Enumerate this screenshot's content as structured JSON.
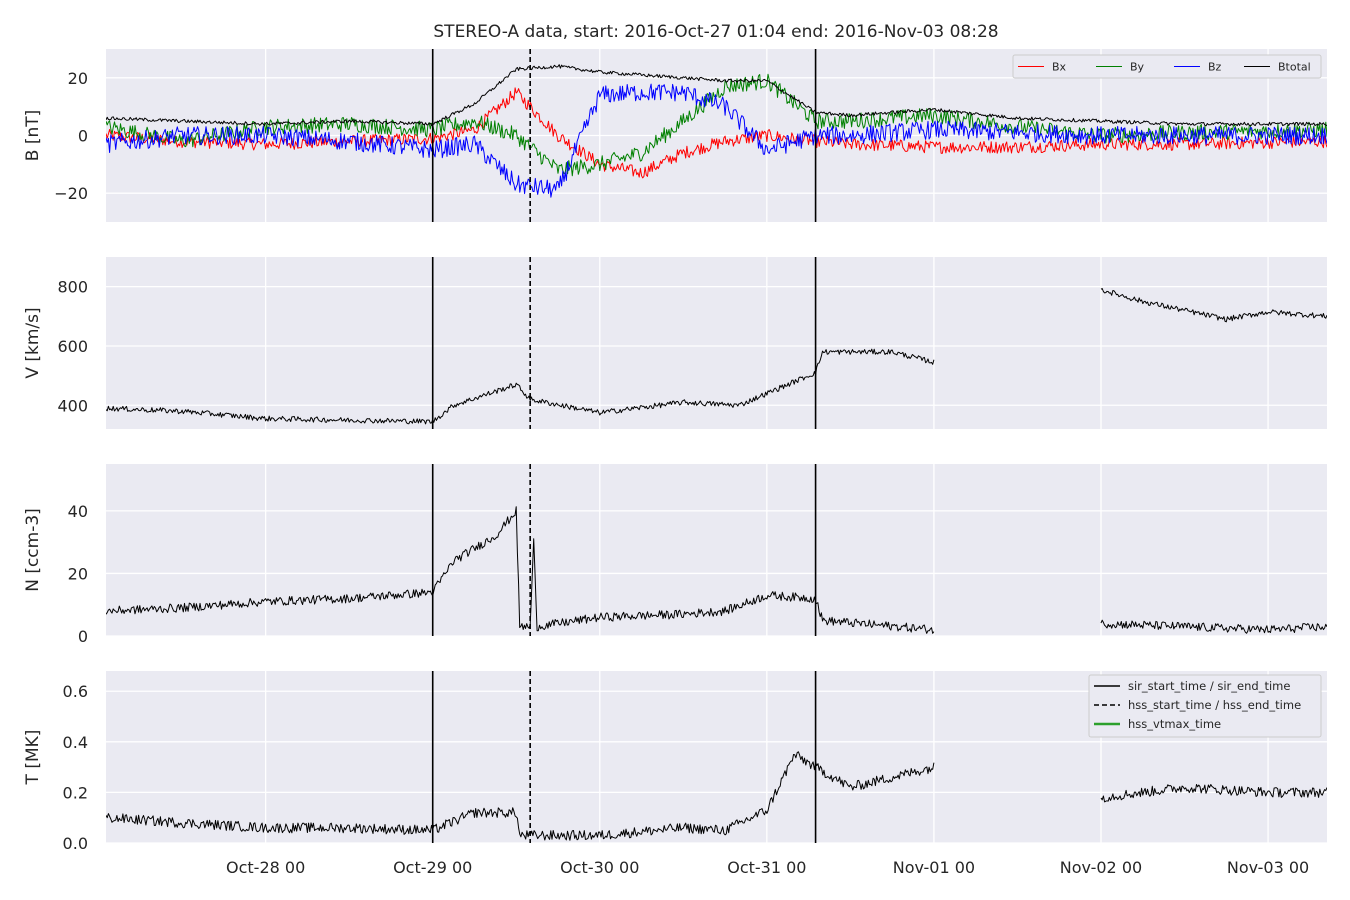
{
  "figure": {
    "title": "STEREO-A data, start: 2016-Oct-27 01:04  end: 2016-Nov-03 08:28"
  },
  "chart_data": {
    "type": "line",
    "x_range": [
      "2016-10-27 01:04",
      "2016-11-03 08:28"
    ],
    "x_ticks": [
      {
        "t": "2016-10-28 00:00",
        "label": "Oct-28 00"
      },
      {
        "t": "2016-10-29 00:00",
        "label": "Oct-29 00"
      },
      {
        "t": "2016-10-30 00:00",
        "label": "Oct-30 00"
      },
      {
        "t": "2016-10-31 00:00",
        "label": "Oct-31 00"
      },
      {
        "t": "2016-11-01 00:00",
        "label": "Nov-01 00"
      },
      {
        "t": "2016-11-02 00:00",
        "label": "Nov-02 00"
      },
      {
        "t": "2016-11-03 00:00",
        "label": "Nov-03 00"
      }
    ],
    "events": {
      "sir_start_time": "2016-10-29 00:00",
      "sir_end_time": "2016-10-31 07:00",
      "hss_start_time": "2016-10-29 14:00",
      "legend": [
        {
          "label": "sir_start_time / sir_end_time",
          "style": "solid",
          "color": "#000000"
        },
        {
          "label": "hss_start_time / hss_end_time",
          "style": "dashed",
          "color": "#000000"
        },
        {
          "label": "hss_vtmax_time",
          "style": "solid",
          "color": "#2ca02c"
        }
      ]
    },
    "panels": [
      {
        "ylabel": "B [nT]",
        "ylim": [
          -30,
          30
        ],
        "yticks": [
          {
            "v": -20,
            "label": "−20"
          },
          {
            "v": 0,
            "label": "0"
          },
          {
            "v": 20,
            "label": "20"
          }
        ],
        "legend_position": "top-right",
        "series": [
          {
            "name": "Bx",
            "color": "#ff0000",
            "points": [
              [
                "2016-10-27 01:04",
                0
              ],
              [
                "2016-10-27 12:00",
                -2
              ],
              [
                "2016-10-28 00:00",
                -3
              ],
              [
                "2016-10-28 12:00",
                -2
              ],
              [
                "2016-10-29 00:00",
                -1
              ],
              [
                "2016-10-29 06:00",
                2
              ],
              [
                "2016-10-29 12:00",
                15
              ],
              [
                "2016-10-29 18:00",
                0
              ],
              [
                "2016-10-30 00:00",
                -10
              ],
              [
                "2016-10-30 06:00",
                -13
              ],
              [
                "2016-10-30 12:00",
                -6
              ],
              [
                "2016-10-30 18:00",
                -2
              ],
              [
                "2016-10-31 00:00",
                0
              ],
              [
                "2016-10-31 07:00",
                -2
              ],
              [
                "2016-10-31 12:00",
                -3
              ],
              [
                "2016-11-01 00:00",
                -4
              ],
              [
                "2016-11-01 12:00",
                -4
              ],
              [
                "2016-11-02 00:00",
                -3
              ],
              [
                "2016-11-02 12:00",
                -3
              ],
              [
                "2016-11-03 08:28",
                -2
              ]
            ]
          },
          {
            "name": "By",
            "color": "#008000",
            "points": [
              [
                "2016-10-27 01:04",
                3
              ],
              [
                "2016-10-27 12:00",
                -2
              ],
              [
                "2016-10-28 00:00",
                3
              ],
              [
                "2016-10-28 12:00",
                4
              ],
              [
                "2016-10-29 00:00",
                2
              ],
              [
                "2016-10-29 06:00",
                5
              ],
              [
                "2016-10-29 12:00",
                0
              ],
              [
                "2016-10-29 18:00",
                -12
              ],
              [
                "2016-10-30 00:00",
                -10
              ],
              [
                "2016-10-30 06:00",
                -6
              ],
              [
                "2016-10-30 12:00",
                5
              ],
              [
                "2016-10-30 18:00",
                17
              ],
              [
                "2016-10-31 00:00",
                19
              ],
              [
                "2016-10-31 07:00",
                5
              ],
              [
                "2016-10-31 12:00",
                5
              ],
              [
                "2016-11-01 00:00",
                7
              ],
              [
                "2016-11-01 12:00",
                3
              ],
              [
                "2016-11-02 00:00",
                0
              ],
              [
                "2016-11-02 12:00",
                1
              ],
              [
                "2016-11-03 08:28",
                2
              ]
            ]
          },
          {
            "name": "Bz",
            "color": "#0000ff",
            "points": [
              [
                "2016-10-27 01:04",
                -3
              ],
              [
                "2016-10-27 12:00",
                0
              ],
              [
                "2016-10-28 00:00",
                0
              ],
              [
                "2016-10-28 12:00",
                -2
              ],
              [
                "2016-10-29 00:00",
                -5
              ],
              [
                "2016-10-29 06:00",
                -3
              ],
              [
                "2016-10-29 12:00",
                -17
              ],
              [
                "2016-10-29 18:00",
                -19
              ],
              [
                "2016-10-30 00:00",
                14
              ],
              [
                "2016-10-30 06:00",
                15
              ],
              [
                "2016-10-30 12:00",
                15
              ],
              [
                "2016-10-30 18:00",
                10
              ],
              [
                "2016-10-31 00:00",
                -5
              ],
              [
                "2016-10-31 07:00",
                0
              ],
              [
                "2016-10-31 12:00",
                0
              ],
              [
                "2016-11-01 00:00",
                2
              ],
              [
                "2016-11-01 12:00",
                1
              ],
              [
                "2016-11-02 00:00",
                0
              ],
              [
                "2016-11-02 12:00",
                0
              ],
              [
                "2016-11-03 08:28",
                0
              ]
            ]
          },
          {
            "name": "Btotal",
            "color": "#000000",
            "points": [
              [
                "2016-10-27 01:04",
                6
              ],
              [
                "2016-10-27 12:00",
                5
              ],
              [
                "2016-10-28 00:00",
                4
              ],
              [
                "2016-10-28 12:00",
                5
              ],
              [
                "2016-10-29 00:00",
                4
              ],
              [
                "2016-10-29 06:00",
                11
              ],
              [
                "2016-10-29 12:00",
                23
              ],
              [
                "2016-10-29 18:00",
                24
              ],
              [
                "2016-10-30 00:00",
                22
              ],
              [
                "2016-10-30 06:00",
                21
              ],
              [
                "2016-10-30 12:00",
                20
              ],
              [
                "2016-10-30 18:00",
                19
              ],
              [
                "2016-10-31 00:00",
                19
              ],
              [
                "2016-10-31 07:00",
                8
              ],
              [
                "2016-10-31 12:00",
                7
              ],
              [
                "2016-11-01 00:00",
                9
              ],
              [
                "2016-11-01 12:00",
                6
              ],
              [
                "2016-11-02 00:00",
                5
              ],
              [
                "2016-11-02 12:00",
                4
              ],
              [
                "2016-11-03 08:28",
                4
              ]
            ]
          }
        ]
      },
      {
        "ylabel": "V [km/s]",
        "ylim": [
          320,
          900
        ],
        "yticks": [
          {
            "v": 400,
            "label": "400"
          },
          {
            "v": 600,
            "label": "600"
          },
          {
            "v": 800,
            "label": "800"
          }
        ],
        "series": [
          {
            "name": "",
            "color": "#000000",
            "points": [
              [
                "2016-10-27 01:04",
                390
              ],
              [
                "2016-10-27 12:00",
                380
              ],
              [
                "2016-10-28 00:00",
                355
              ],
              [
                "2016-10-28 12:00",
                350
              ],
              [
                "2016-10-29 00:00",
                345
              ],
              [
                "2016-10-29 03:00",
                400
              ],
              [
                "2016-10-29 12:00",
                470
              ],
              [
                "2016-10-29 14:00",
                420
              ],
              [
                "2016-10-30 00:00",
                375
              ],
              [
                "2016-10-30 12:00",
                410
              ],
              [
                "2016-10-30 20:00",
                400
              ],
              [
                "2016-10-31 00:00",
                440
              ],
              [
                "2016-10-31 07:00",
                510
              ],
              [
                "2016-10-31 08:00",
                580
              ],
              [
                "2016-10-31 18:00",
                580
              ],
              [
                "2016-11-01 00:00",
                545
              ],
              null,
              [
                "2016-11-02 00:00",
                790
              ],
              [
                "2016-11-02 06:00",
                750
              ],
              [
                "2016-11-02 12:00",
                720
              ],
              [
                "2016-11-02 18:00",
                690
              ],
              [
                "2016-11-03 00:00",
                715
              ],
              [
                "2016-11-03 08:28",
                700
              ]
            ]
          }
        ]
      },
      {
        "ylabel": "N [ccm-3]",
        "ylim": [
          0,
          55
        ],
        "yticks": [
          {
            "v": 0,
            "label": "0"
          },
          {
            "v": 20,
            "label": "20"
          },
          {
            "v": 40,
            "label": "40"
          }
        ],
        "series": [
          {
            "name": "",
            "color": "#000000",
            "points": [
              [
                "2016-10-27 01:04",
                8
              ],
              [
                "2016-10-27 12:00",
                9
              ],
              [
                "2016-10-28 00:00",
                11
              ],
              [
                "2016-10-28 12:00",
                12
              ],
              [
                "2016-10-29 00:00",
                14
              ],
              [
                "2016-10-29 03:00",
                24
              ],
              [
                "2016-10-29 09:00",
                32
              ],
              [
                "2016-10-29 12:00",
                40
              ],
              [
                "2016-10-29 12:30",
                3
              ],
              [
                "2016-10-29 14:00",
                3
              ],
              [
                "2016-10-29 14:30",
                30
              ],
              [
                "2016-10-29 15:00",
                3
              ],
              [
                "2016-10-30 00:00",
                6
              ],
              [
                "2016-10-30 12:00",
                7
              ],
              [
                "2016-10-30 18:00",
                8
              ],
              [
                "2016-10-31 00:00",
                13
              ],
              [
                "2016-10-31 07:00",
                12
              ],
              [
                "2016-10-31 08:00",
                5
              ],
              [
                "2016-11-01 00:00",
                2
              ],
              null,
              [
                "2016-11-02 00:00",
                4
              ],
              [
                "2016-11-02 12:00",
                3
              ],
              [
                "2016-11-03 00:00",
                2
              ],
              [
                "2016-11-03 08:28",
                3
              ]
            ]
          }
        ]
      },
      {
        "ylabel": "T [MK]",
        "ylim": [
          0,
          0.68
        ],
        "yticks": [
          {
            "v": 0,
            "label": "0.0"
          },
          {
            "v": 0.2,
            "label": "0.2"
          },
          {
            "v": 0.4,
            "label": "0.4"
          },
          {
            "v": 0.6,
            "label": "0.6"
          }
        ],
        "legend_position": "top-right",
        "series": [
          {
            "name": "",
            "color": "#000000",
            "points": [
              [
                "2016-10-27 01:04",
                0.1
              ],
              [
                "2016-10-27 12:00",
                0.08
              ],
              [
                "2016-10-28 00:00",
                0.06
              ],
              [
                "2016-10-28 12:00",
                0.06
              ],
              [
                "2016-10-29 00:00",
                0.05
              ],
              [
                "2016-10-29 06:00",
                0.12
              ],
              [
                "2016-10-29 12:00",
                0.12
              ],
              [
                "2016-10-29 12:30",
                0.03
              ],
              [
                "2016-10-30 00:00",
                0.03
              ],
              [
                "2016-10-30 12:00",
                0.06
              ],
              [
                "2016-10-30 18:00",
                0.05
              ],
              [
                "2016-10-31 00:00",
                0.13
              ],
              [
                "2016-10-31 04:00",
                0.35
              ],
              [
                "2016-10-31 07:00",
                0.3
              ],
              [
                "2016-10-31 12:00",
                0.22
              ],
              [
                "2016-11-01 00:00",
                0.3
              ],
              null,
              [
                "2016-11-02 00:00",
                0.18
              ],
              [
                "2016-11-02 12:00",
                0.22
              ],
              [
                "2016-11-03 00:00",
                0.2
              ],
              [
                "2016-11-03 08:28",
                0.2
              ]
            ]
          }
        ]
      }
    ]
  }
}
